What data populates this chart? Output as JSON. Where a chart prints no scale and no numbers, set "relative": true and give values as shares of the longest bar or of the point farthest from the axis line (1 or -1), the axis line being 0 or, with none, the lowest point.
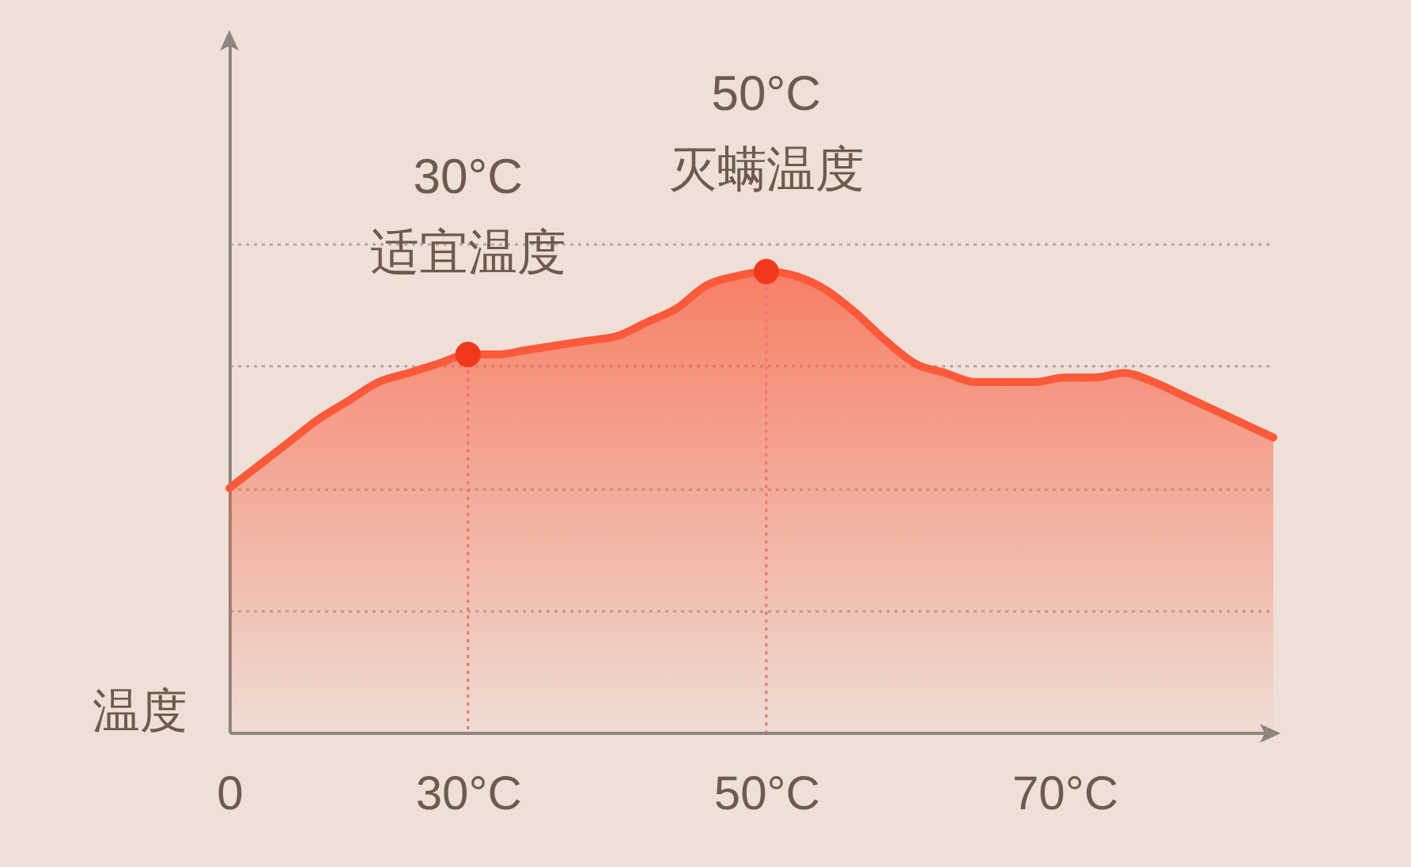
{
  "chart_data": {
    "type": "area",
    "ylabel": "温度",
    "relative": true,
    "grid": "y",
    "categories": [
      "0",
      null,
      null,
      null,
      null,
      null,
      null,
      null,
      "30°C",
      null,
      null,
      null,
      null,
      null,
      null,
      null,
      null,
      null,
      "50°C",
      null,
      null,
      null,
      null,
      null,
      null,
      null,
      null,
      null,
      "70°C",
      null,
      null,
      null,
      null,
      null,
      null,
      null
    ],
    "series": [
      {
        "color": "#fb5a3a",
        "values": [
          0.53,
          0.58,
          0.63,
          0.68,
          0.72,
          0.76,
          0.78,
          0.8,
          0.82,
          0.82,
          0.83,
          0.84,
          0.85,
          0.86,
          0.89,
          0.92,
          0.97,
          0.99,
          1,
          0.99,
          0.96,
          0.91,
          0.85,
          0.8,
          0.78,
          0.76,
          0.76,
          0.76,
          0.77,
          0.77,
          0.78,
          0.76,
          0.73,
          0.7,
          0.67,
          0.64
        ]
      },
      {
        "type": "scatter",
        "color": "#f2381c",
        "x": [
          "30°C",
          "50°C"
        ],
        "values": [
          0.82,
          1
        ]
      }
    ],
    "annotations": [
      {
        "text": "30°C\n适宜温度",
        "x": "30°C",
        "y": 0.82
      },
      {
        "text": "50°C\n灭螨温度",
        "x": "50°C",
        "y": 1
      }
    ],
    "ref_lines": [
      {
        "axis": "x",
        "value": "30°C",
        "color": "#f07070",
        "line_style": "dotted"
      },
      {
        "axis": "x",
        "value": "50°C",
        "color": "#f07070",
        "line_style": "dotted"
      }
    ]
  }
}
